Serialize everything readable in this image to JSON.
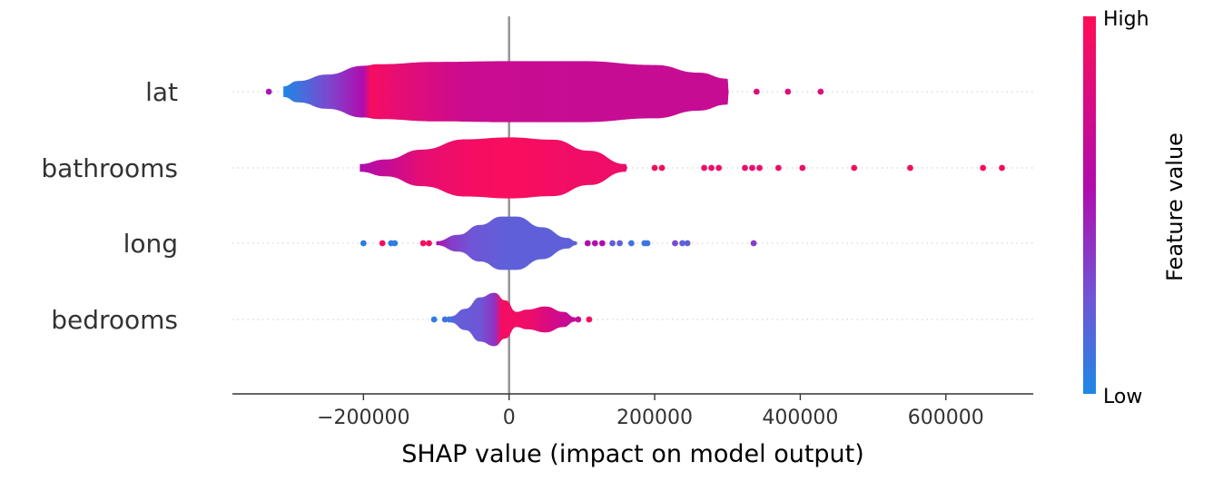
{
  "chart_data": {
    "type": "violin",
    "title": "",
    "xlabel": "SHAP value (impact on model output)",
    "ylabel": "",
    "xlim": [
      -380000,
      720000
    ],
    "x_ticks": [
      -200000,
      0,
      200000,
      400000,
      600000
    ],
    "x_tick_labels": [
      "−200000",
      "0",
      "200000",
      "400000",
      "600000"
    ],
    "colorbar": {
      "title": "Feature value",
      "high_label": "High",
      "low_label": "Low",
      "high_color": "#ff0d57",
      "low_color": "#1e88e5"
    },
    "features": [
      {
        "name": "lat",
        "profile": [
          {
            "x": -310000,
            "w": 0.14
          },
          {
            "x": -290000,
            "w": 0.28
          },
          {
            "x": -250000,
            "w": 0.45
          },
          {
            "x": -200000,
            "w": 0.68
          },
          {
            "x": -180000,
            "w": 0.72
          },
          {
            "x": -100000,
            "w": 0.78
          },
          {
            "x": 0,
            "w": 0.8
          },
          {
            "x": 100000,
            "w": 0.8
          },
          {
            "x": 200000,
            "w": 0.7
          },
          {
            "x": 260000,
            "w": 0.5
          },
          {
            "x": 300000,
            "w": 0.34
          },
          {
            "x": 302000,
            "w": 0.0
          }
        ],
        "color_stops": [
          {
            "x": -310000,
            "c": 0.0
          },
          {
            "x": -250000,
            "c": 0.3
          },
          {
            "x": -200000,
            "c": 0.55
          },
          {
            "x": -190000,
            "c": 0.95
          },
          {
            "x": -150000,
            "c": 0.85
          },
          {
            "x": -60000,
            "c": 0.7
          },
          {
            "x": 100000,
            "c": 0.68
          },
          {
            "x": 300000,
            "c": 0.68
          }
        ],
        "outliers": [
          {
            "x": -330000,
            "c": 0.5
          },
          {
            "x": 340000,
            "c": 0.8
          },
          {
            "x": 383000,
            "c": 0.8
          },
          {
            "x": 428000,
            "c": 0.8
          }
        ]
      },
      {
        "name": "bathrooms",
        "profile": [
          {
            "x": -205000,
            "w": 0.1
          },
          {
            "x": -170000,
            "w": 0.22
          },
          {
            "x": -120000,
            "w": 0.48
          },
          {
            "x": -60000,
            "w": 0.75
          },
          {
            "x": 0,
            "w": 0.8
          },
          {
            "x": 60000,
            "w": 0.74
          },
          {
            "x": 110000,
            "w": 0.45
          },
          {
            "x": 160000,
            "w": 0.1
          },
          {
            "x": 163000,
            "w": 0.0
          }
        ],
        "color_stops": [
          {
            "x": -205000,
            "c": 0.55
          },
          {
            "x": -160000,
            "c": 0.7
          },
          {
            "x": -120000,
            "c": 0.85
          },
          {
            "x": -60000,
            "c": 0.93
          },
          {
            "x": 0,
            "c": 0.97
          },
          {
            "x": 80000,
            "c": 0.92
          },
          {
            "x": 160000,
            "c": 0.9
          }
        ],
        "outliers": [
          {
            "x": 200000,
            "c": 0.95
          },
          {
            "x": 210000,
            "c": 0.95
          },
          {
            "x": 268000,
            "c": 0.9
          },
          {
            "x": 278000,
            "c": 0.9
          },
          {
            "x": 288000,
            "c": 0.9
          },
          {
            "x": 324000,
            "c": 0.9
          },
          {
            "x": 334000,
            "c": 0.9
          },
          {
            "x": 344000,
            "c": 0.9
          },
          {
            "x": 370000,
            "c": 0.9
          },
          {
            "x": 403000,
            "c": 0.9
          },
          {
            "x": 474000,
            "c": 0.95
          },
          {
            "x": 551000,
            "c": 0.95
          },
          {
            "x": 651000,
            "c": 0.95
          },
          {
            "x": 677000,
            "c": 0.95
          }
        ]
      },
      {
        "name": "long",
        "profile": [
          {
            "x": -100000,
            "w": 0.05
          },
          {
            "x": -70000,
            "w": 0.22
          },
          {
            "x": -40000,
            "w": 0.48
          },
          {
            "x": -10000,
            "w": 0.7
          },
          {
            "x": 10000,
            "w": 0.7
          },
          {
            "x": 45000,
            "w": 0.42
          },
          {
            "x": 80000,
            "w": 0.14
          },
          {
            "x": 92000,
            "w": 0.05
          },
          {
            "x": 94000,
            "w": 0.0
          }
        ],
        "color_stops": [
          {
            "x": -100000,
            "c": 0.55
          },
          {
            "x": -80000,
            "c": 0.35
          },
          {
            "x": -50000,
            "c": 0.25
          },
          {
            "x": 0,
            "c": 0.2
          },
          {
            "x": 90000,
            "c": 0.2
          }
        ],
        "outliers": [
          {
            "x": -200000,
            "c": 0.05
          },
          {
            "x": -174000,
            "c": 0.95
          },
          {
            "x": -162000,
            "c": 0.05
          },
          {
            "x": -157000,
            "c": 0.05
          },
          {
            "x": -118000,
            "c": 0.95
          },
          {
            "x": -110000,
            "c": 0.95
          },
          {
            "x": 108000,
            "c": 0.55
          },
          {
            "x": 118000,
            "c": 0.55
          },
          {
            "x": 128000,
            "c": 0.55
          },
          {
            "x": 142000,
            "c": 0.2
          },
          {
            "x": 152000,
            "c": 0.2
          },
          {
            "x": 168000,
            "c": 0.1
          },
          {
            "x": 186000,
            "c": 0.1
          },
          {
            "x": 190000,
            "c": 0.1
          },
          {
            "x": 228000,
            "c": 0.3
          },
          {
            "x": 238000,
            "c": 0.2
          },
          {
            "x": 245000,
            "c": 0.2
          },
          {
            "x": 336000,
            "c": 0.35
          }
        ]
      },
      {
        "name": "bedrooms",
        "profile": [
          {
            "x": -80000,
            "w": 0.08
          },
          {
            "x": -60000,
            "w": 0.28
          },
          {
            "x": -40000,
            "w": 0.58
          },
          {
            "x": -20000,
            "w": 0.7
          },
          {
            "x": -5000,
            "w": 0.5
          },
          {
            "x": 10000,
            "w": 0.2
          },
          {
            "x": 25000,
            "w": 0.26
          },
          {
            "x": 50000,
            "w": 0.34
          },
          {
            "x": 75000,
            "w": 0.2
          },
          {
            "x": 90000,
            "w": 0.06
          },
          {
            "x": 93000,
            "w": 0.0
          }
        ],
        "color_stops": [
          {
            "x": -80000,
            "c": 0.2
          },
          {
            "x": -40000,
            "c": 0.25
          },
          {
            "x": -20000,
            "c": 0.4
          },
          {
            "x": -10000,
            "c": 0.95
          },
          {
            "x": 30000,
            "c": 0.9
          },
          {
            "x": 60000,
            "c": 0.75
          },
          {
            "x": 90000,
            "c": 0.65
          }
        ],
        "outliers": [
          {
            "x": -103000,
            "c": 0.05
          },
          {
            "x": -88000,
            "c": 0.1
          },
          {
            "x": -82000,
            "c": 0.1
          },
          {
            "x": 95000,
            "c": 0.7
          },
          {
            "x": 110000,
            "c": 0.95
          }
        ]
      }
    ]
  }
}
